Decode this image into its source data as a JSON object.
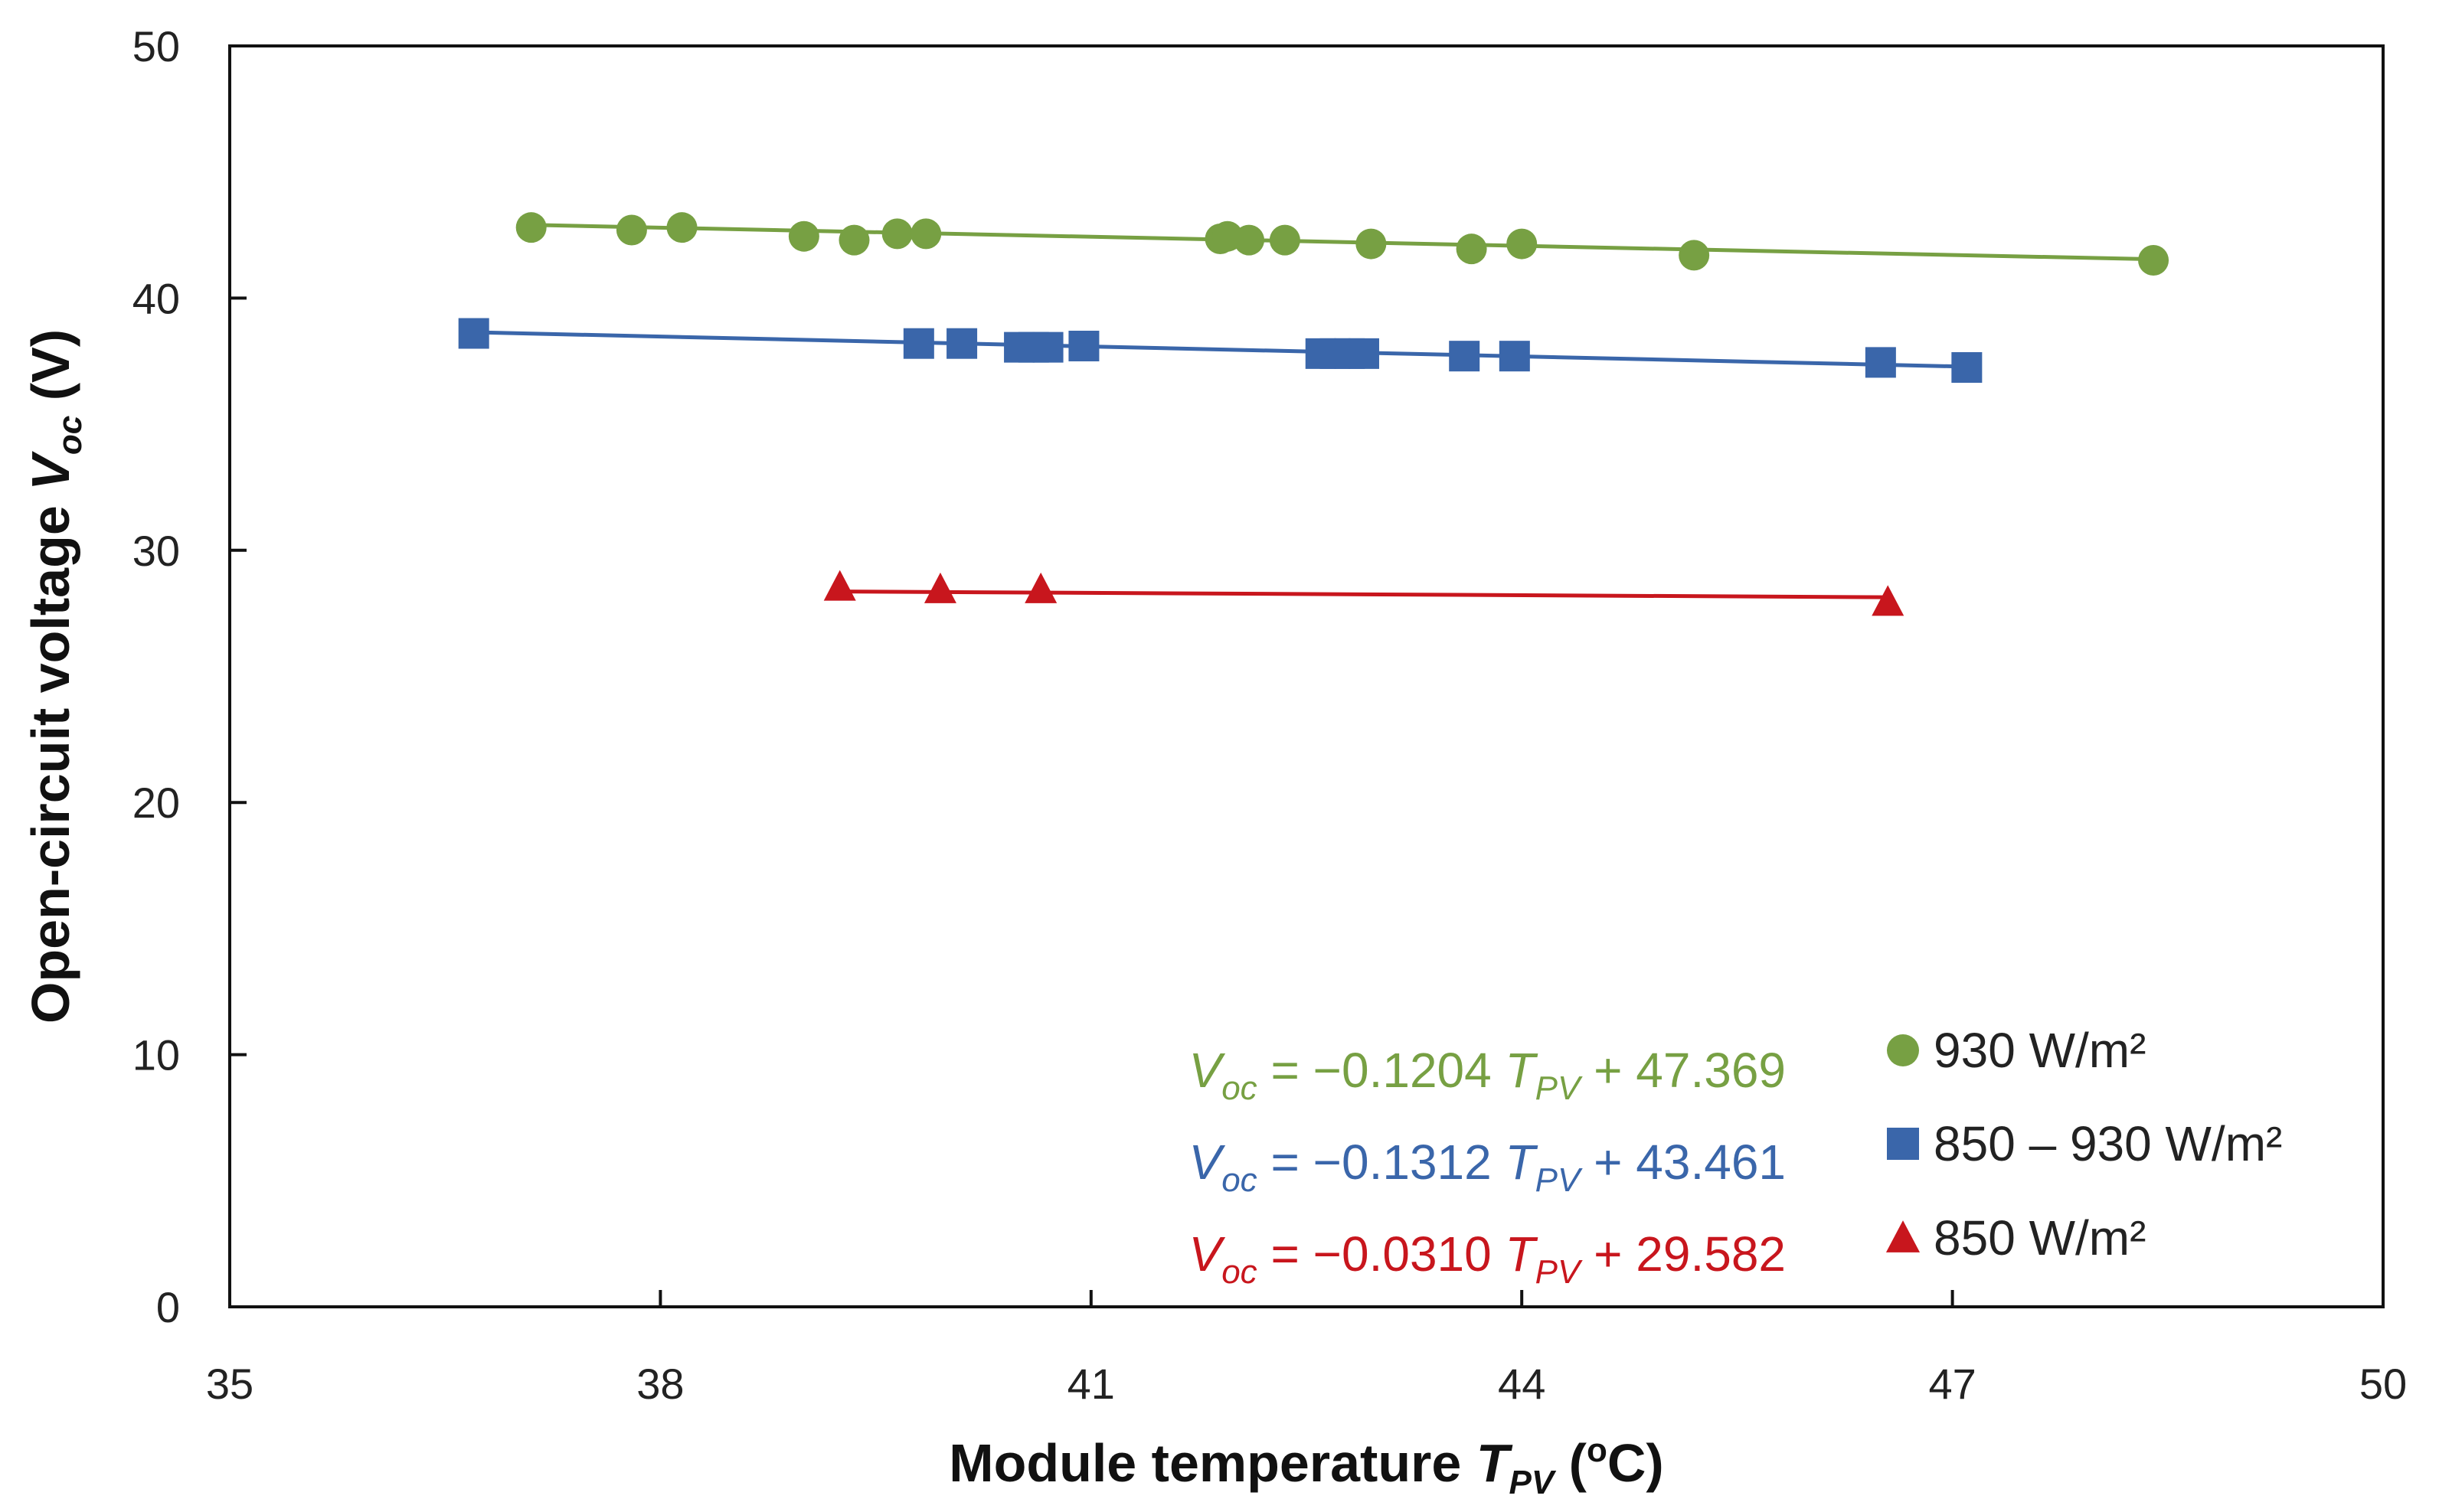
{
  "chart_data": {
    "type": "scatter",
    "title": "",
    "xlabel": "Module temperature",
    "xlabel_symbol": "T",
    "xlabel_symbol_sub": "PV",
    "xlabel_unit_open": " (",
    "xlabel_unit_sup": "o",
    "xlabel_unit_close": "C)",
    "ylabel": "Open-circuit voltage",
    "ylabel_symbol": "V",
    "ylabel_symbol_sub": "oc",
    "ylabel_unit": " (V)",
    "xlim": [
      35,
      50
    ],
    "ylim": [
      0,
      50
    ],
    "xticks": [
      35,
      38,
      41,
      44,
      47,
      50
    ],
    "yticks": [
      0,
      10,
      20,
      30,
      40,
      50
    ],
    "grid": false,
    "legend_position": "bottom-right",
    "series": [
      {
        "name": "930 W/m²",
        "color": "#77a043",
        "marker": "circle",
        "x": [
          37.1,
          37.8,
          38.15,
          39.0,
          39.35,
          39.65,
          39.85,
          41.9,
          41.95,
          42.1,
          42.35,
          42.95,
          43.65,
          44.0,
          45.2,
          48.4
        ],
        "y": [
          42.8,
          42.7,
          42.8,
          42.45,
          42.3,
          42.55,
          42.55,
          42.35,
          42.45,
          42.3,
          42.3,
          42.15,
          41.95,
          42.15,
          41.7,
          41.5
        ],
        "fit": {
          "slope": -0.1204,
          "intercept": 47.369,
          "x_range": [
            37.1,
            48.4
          ]
        },
        "equation": {
          "lhs": "V",
          "lhs_sub": "oc",
          "eq": " = ",
          "coef": "−0.1204",
          "var": "T",
          "var_sub": "PV",
          "plus": " + ",
          "const": "47.369"
        }
      },
      {
        "name": "850 – 930 W/m²",
        "color": "#3a66aa",
        "marker": "square",
        "x": [
          36.7,
          39.8,
          40.1,
          40.5,
          40.6,
          40.7,
          40.95,
          42.6,
          42.7,
          42.8,
          42.9,
          43.6,
          43.95,
          46.5,
          47.1
        ],
        "y": [
          38.6,
          38.2,
          38.2,
          38.05,
          38.05,
          38.05,
          38.1,
          37.8,
          37.8,
          37.8,
          37.8,
          37.7,
          37.7,
          37.45,
          37.25
        ],
        "fit": {
          "slope": -0.1312,
          "intercept": 43.461,
          "x_range": [
            36.7,
            47.1
          ]
        },
        "equation": {
          "lhs": "V",
          "lhs_sub": "oc",
          "eq": " = ",
          "coef": "−0.1312",
          "var": "T",
          "var_sub": "PV",
          "plus": " + ",
          "const": "43.461"
        }
      },
      {
        "name": "850 W/m²",
        "color": "#c8161d",
        "marker": "triangle",
        "x": [
          39.25,
          39.95,
          40.65,
          46.55
        ],
        "y": [
          28.55,
          28.45,
          28.45,
          27.95
        ],
        "fit": {
          "slope": -0.031,
          "intercept": 29.582,
          "x_range": [
            39.25,
            46.55
          ]
        },
        "equation": {
          "lhs": "V",
          "lhs_sub": "oc",
          "eq": " = ",
          "coef": "−0.0310",
          "var": "T",
          "var_sub": "PV",
          "plus": " + ",
          "const": "29.582"
        }
      }
    ]
  }
}
